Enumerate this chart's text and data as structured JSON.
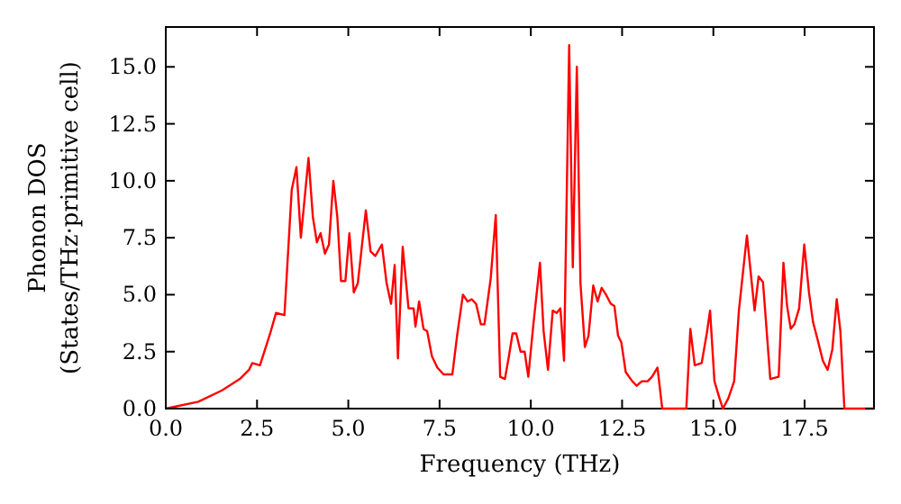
{
  "chart_data": {
    "type": "line",
    "xlabel": "Frequency (THz)",
    "ylabel": "Phonon DOS\n(States/THz·primitive cell)",
    "xlim": [
      0,
      19.4
    ],
    "ylim": [
      0,
      16.75
    ],
    "xticks": [
      {
        "value": 0,
        "label": "0.0"
      },
      2.5,
      {
        "value": 5,
        "label": "5.0"
      },
      7.5,
      {
        "value": 10,
        "label": "10.0"
      },
      12.5,
      {
        "value": 15,
        "label": "15.0"
      },
      17.5
    ],
    "yticks": [
      {
        "value": 0,
        "label": "0.0"
      },
      2.5,
      {
        "value": 5,
        "label": "5.0"
      },
      7.5,
      {
        "value": 10,
        "label": "10.0"
      },
      12.5,
      {
        "value": 15,
        "label": "15.0"
      }
    ],
    "grid": false,
    "marker": "none",
    "line_style": "solid",
    "series": [
      {
        "color": "#ff0000",
        "x": [
          0,
          0.89,
          1.54,
          2.03,
          2.28,
          2.37,
          2.58,
          2.86,
          3.02,
          3.25,
          3.45,
          3.58,
          3.7,
          3.91,
          4.03,
          4.14,
          4.24,
          4.36,
          4.47,
          4.59,
          4.7,
          4.8,
          4.92,
          5.03,
          5.15,
          5.26,
          5.48,
          5.61,
          5.74,
          5.92,
          6.05,
          6.17,
          6.27,
          6.36,
          6.49,
          6.65,
          6.79,
          6.84,
          6.94,
          7.06,
          7.16,
          7.29,
          7.44,
          7.61,
          7.85,
          7.98,
          8.14,
          8.27,
          8.38,
          8.5,
          8.63,
          8.73,
          8.9,
          9.04,
          9.16,
          9.29,
          9.4,
          9.5,
          9.6,
          9.72,
          9.83,
          9.93,
          10.07,
          10.25,
          10.35,
          10.47,
          10.6,
          10.71,
          10.81,
          10.91,
          11.05,
          11.15,
          11.26,
          11.36,
          11.48,
          11.58,
          11.71,
          11.83,
          11.94,
          12.06,
          12.19,
          12.29,
          12.39,
          12.48,
          12.6,
          12.78,
          12.9,
          13.04,
          13.2,
          13.32,
          13.47,
          13.6,
          14.26,
          14.37,
          14.49,
          14.68,
          14.82,
          14.91,
          15.03,
          15.16,
          15.26,
          15.41,
          15.57,
          15.7,
          15.92,
          16.13,
          16.24,
          16.36,
          16.56,
          16.79,
          16.92,
          17.02,
          17.12,
          17.22,
          17.35,
          17.49,
          17.62,
          17.73,
          17.86,
          18.0,
          18.13,
          18.26,
          18.38,
          18.48,
          18.59,
          19.4
        ],
        "values": [
          0,
          0.3,
          0.8,
          1.3,
          1.7,
          2.0,
          1.9,
          3.3,
          4.2,
          4.1,
          9.6,
          10.6,
          7.5,
          11.0,
          8.4,
          7.3,
          7.7,
          6.8,
          7.2,
          10.0,
          8.4,
          5.6,
          5.6,
          7.7,
          5.1,
          5.5,
          8.7,
          6.9,
          6.7,
          7.2,
          5.5,
          4.6,
          6.3,
          2.2,
          7.1,
          4.4,
          4.4,
          3.6,
          4.7,
          3.5,
          3.4,
          2.3,
          1.8,
          1.5,
          1.5,
          3.2,
          5.0,
          4.7,
          4.8,
          4.6,
          3.7,
          3.7,
          5.7,
          8.5,
          1.4,
          1.3,
          2.3,
          3.3,
          3.3,
          2.5,
          2.5,
          1.4,
          3.7,
          6.4,
          3.4,
          1.7,
          4.3,
          4.2,
          4.4,
          2.1,
          15.95,
          6.2,
          15.0,
          5.5,
          2.7,
          3.2,
          5.4,
          4.7,
          5.3,
          5.0,
          4.6,
          4.5,
          3.2,
          2.9,
          1.6,
          1.2,
          1.0,
          1.2,
          1.2,
          1.4,
          1.8,
          0,
          0,
          3.5,
          1.9,
          2.0,
          3.3,
          4.3,
          1.2,
          0.5,
          0,
          0.45,
          1.2,
          4.3,
          7.6,
          4.3,
          5.8,
          5.55,
          1.3,
          1.4,
          6.4,
          4.5,
          3.5,
          3.7,
          4.4,
          7.2,
          5.1,
          3.8,
          3.0,
          2.1,
          1.7,
          2.6,
          4.8,
          3.4,
          0,
          0
        ]
      }
    ]
  }
}
